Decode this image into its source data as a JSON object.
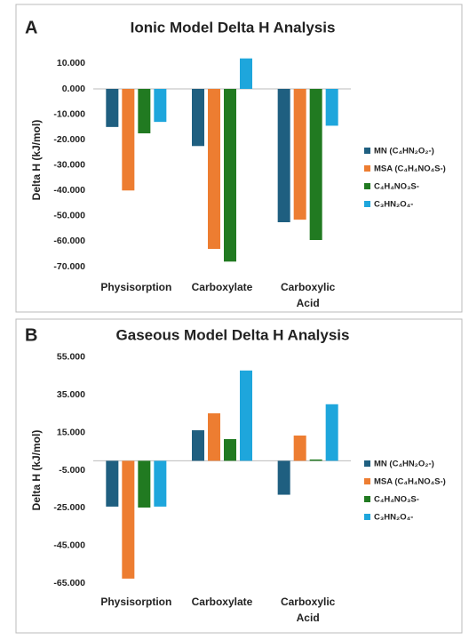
{
  "chart_data": [
    {
      "type": "bar",
      "panel": "A",
      "title": "Ionic Model Delta H Analysis",
      "y_label": "Delta H (kJ/mol)",
      "categories": [
        "Physisorption",
        "Carboxylate",
        "Carboxylic Acid"
      ],
      "series": [
        {
          "name": "MN (C₄HN₂O₂-)",
          "color": "#1f5f80",
          "values": [
            -15,
            -22.5,
            -52.5
          ]
        },
        {
          "name": "MSA (C₄H₄NO₄S-)",
          "color": "#ed7d31",
          "values": [
            -40,
            -63,
            -51.5
          ]
        },
        {
          "name": "C₄H₄NO₃S-",
          "color": "#217a21",
          "values": [
            -17.5,
            -68,
            -59.5
          ]
        },
        {
          "name": "C₃HN₂O₄-",
          "color": "#1ea6dc",
          "values": [
            -13,
            12,
            -14.5
          ]
        }
      ],
      "ylim": [
        -70,
        14
      ],
      "yticks": [
        {
          "value": 10,
          "label": "10.000"
        },
        {
          "value": 0,
          "label": "0.000"
        },
        {
          "value": -10,
          "label": "-10.000"
        },
        {
          "value": -20,
          "label": "-20.000"
        },
        {
          "value": -30,
          "label": "-30.000"
        },
        {
          "value": -40,
          "label": "-40.000"
        },
        {
          "value": -50,
          "label": "-50.000"
        },
        {
          "value": -60,
          "label": "-60.000"
        },
        {
          "value": -70,
          "label": "-70.000"
        }
      ],
      "legend": "right"
    },
    {
      "type": "bar",
      "panel": "B",
      "title": "Gaseous Model Delta H Analysis",
      "y_label": "Delta H (kJ/mol)",
      "categories": [
        "Physisorption",
        "Carboxylate",
        "Carboxylic Acid"
      ],
      "series": [
        {
          "name": "MN (C₄HN₂O₂-)",
          "color": "#1f5f80",
          "values": [
            -24.3,
            16.2,
            -18
          ]
        },
        {
          "name": "MSA (C₄H₄NO₄S-)",
          "color": "#ed7d31",
          "values": [
            -62.5,
            25.2,
            13.4
          ]
        },
        {
          "name": "C₄H₄NO₃S-",
          "color": "#217a21",
          "values": [
            -24.8,
            11.5,
            0.7
          ]
        },
        {
          "name": "C₃HN₂O₄-",
          "color": "#1ea6dc",
          "values": [
            -24.3,
            47.9,
            30
          ]
        }
      ],
      "ylim": [
        -68,
        58
      ],
      "yticks": [
        {
          "value": 55,
          "label": "55.000"
        },
        {
          "value": 35,
          "label": "35.000"
        },
        {
          "value": 15,
          "label": "15.000"
        },
        {
          "value": -5,
          "label": "-5.000"
        },
        {
          "value": -25,
          "label": "-25.000"
        },
        {
          "value": -45,
          "label": "-45.000"
        },
        {
          "value": -65,
          "label": "-65.000"
        }
      ],
      "legend": "right"
    }
  ]
}
